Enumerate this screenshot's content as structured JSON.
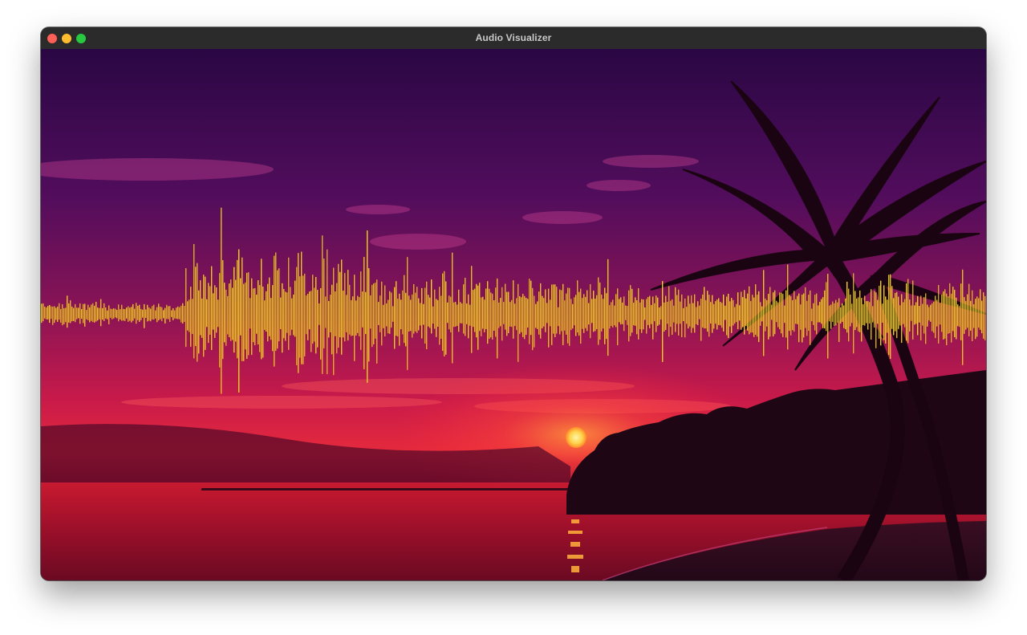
{
  "window": {
    "title": "Audio Visualizer",
    "buttons": {
      "close": "close",
      "minimize": "minimize",
      "zoom": "zoom"
    }
  },
  "visualizer": {
    "background": "sunset beach with palm tree silhouette",
    "waveform_color": "#f2d21c",
    "sky_colors": [
      "#2a0744",
      "#5b0f60",
      "#a01a5a",
      "#e0224a"
    ],
    "sun_color": "#ffd24a"
  }
}
